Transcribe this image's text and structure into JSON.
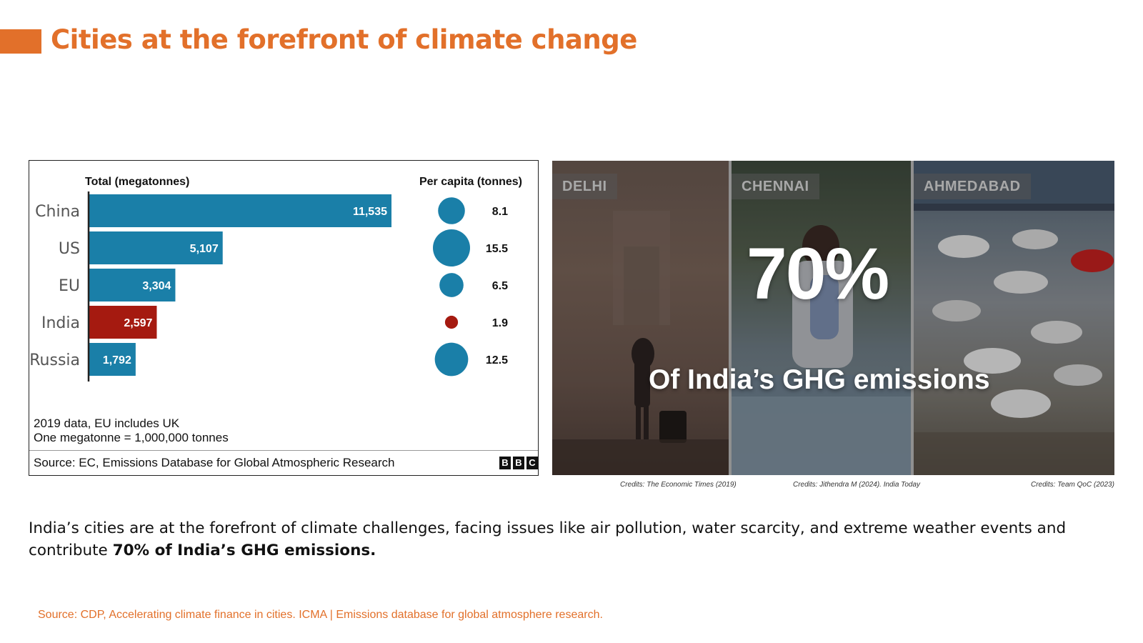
{
  "slide": {
    "title": "Cities at the forefront of climate change",
    "accent_color": "#e2702a"
  },
  "chart_data": {
    "type": "bar",
    "title": "",
    "xlabel": "Total (megatonnes)",
    "ylabel": "",
    "categories": [
      "China",
      "US",
      "EU",
      "India",
      "Russia"
    ],
    "series": [
      {
        "name": "Total (megatonnes)",
        "values": [
          11535,
          5107,
          3304,
          2597,
          1792
        ],
        "labels": [
          "11,535",
          "5,107",
          "3,304",
          "2,597",
          "1,792"
        ],
        "colors": [
          "#1a7fa8",
          "#1a7fa8",
          "#1a7fa8",
          "#a51a10",
          "#1a7fa8"
        ]
      },
      {
        "name": "Per capita (tonnes)",
        "chart": "bubble",
        "values": [
          8.1,
          15.5,
          6.5,
          1.9,
          12.5
        ],
        "labels": [
          "8.1",
          "15.5",
          "6.5",
          "1.9",
          "12.5"
        ],
        "colors": [
          "#1a7fa8",
          "#1a7fa8",
          "#1a7fa8",
          "#a51a10",
          "#1a7fa8"
        ]
      }
    ],
    "notes": [
      "2019 data, EU includes UK",
      "One megatonne = 1,000,000 tonnes"
    ],
    "source": "Source: EC, Emissions Database for Global Atmospheric Research",
    "logo": [
      "B",
      "B",
      "C"
    ]
  },
  "photos": {
    "cities": [
      "DELHI",
      "CHENNAI",
      "AHMEDABAD"
    ],
    "headline_value": "70%",
    "headline_caption": "Of India’s GHG emissions",
    "credits": [
      "Credits: The Economic Times (2019)",
      "Credits: Jithendra M (2024). India Today",
      "Credits: Team QoC (2023)"
    ]
  },
  "body": {
    "text_plain": "India’s cities are at the forefront of climate challenges, facing issues like air pollution, water scarcity, and extreme weather events and contribute ",
    "text_bold": "70% of India’s GHG emissions."
  },
  "footer": {
    "source": "Source: CDP, Accelerating climate finance in cities. ICMA | Emissions database for global atmosphere research."
  }
}
